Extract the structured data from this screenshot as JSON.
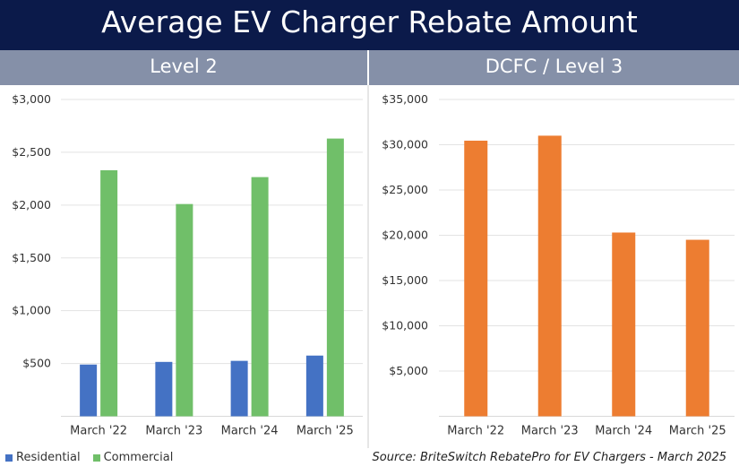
{
  "title": "Average EV Charger Rebate Amount",
  "source": "Source: BriteSwitch RebatePro for EV Chargers - March 2025",
  "chart_data": [
    {
      "type": "bar",
      "title": "Level 2",
      "categories": [
        "March '22",
        "March '23",
        "March '24",
        "March '25"
      ],
      "ylim": [
        0,
        3000
      ],
      "yticks": [
        500,
        1000,
        1500,
        2000,
        2500,
        3000
      ],
      "ytick_labels": [
        "$500",
        "$1,000",
        "$1,500",
        "$2,000",
        "$2,500",
        "$3,000"
      ],
      "grid": true,
      "legend": "bottom-left",
      "series": [
        {
          "name": "Residential",
          "color": "#4472c4",
          "values": [
            490,
            515,
            525,
            575
          ]
        },
        {
          "name": "Commercial",
          "color": "#70bf69",
          "values": [
            2330,
            2010,
            2265,
            2630
          ]
        }
      ]
    },
    {
      "type": "bar",
      "title": "DCFC / Level 3",
      "categories": [
        "March '22",
        "March '23",
        "March '24",
        "March '25"
      ],
      "ylim": [
        0,
        35000
      ],
      "yticks": [
        5000,
        10000,
        15000,
        20000,
        25000,
        30000,
        35000
      ],
      "ytick_labels": [
        "$5,000",
        "$10,000",
        "$15,000",
        "$20,000",
        "$25,000",
        "$30,000",
        "$35,000"
      ],
      "grid": true,
      "series": [
        {
          "color": "#ed7d31",
          "values": [
            30450,
            31000,
            20300,
            19500
          ]
        }
      ]
    }
  ]
}
